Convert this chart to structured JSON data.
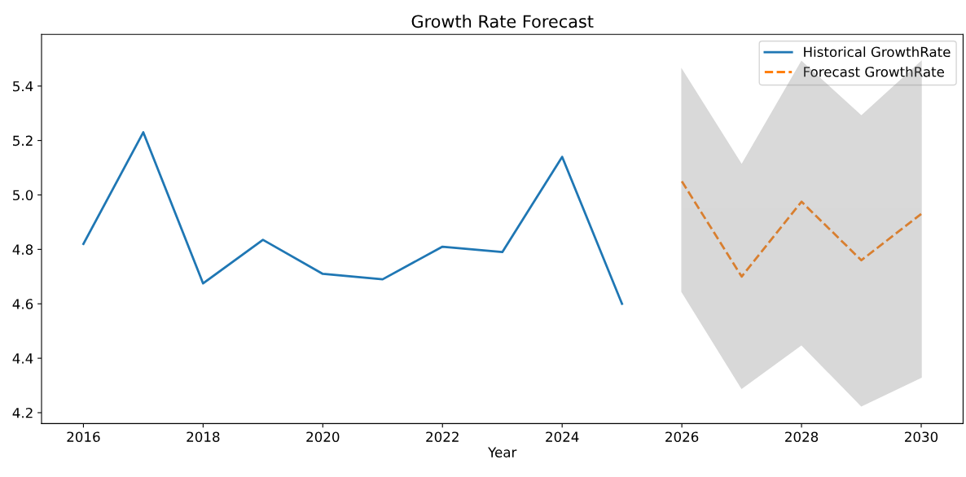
{
  "chart_data": {
    "type": "line",
    "title": "Growth Rate Forecast",
    "xlabel": "Year",
    "xlim": [
      2015.3,
      2030.7
    ],
    "xticks": [
      2016,
      2018,
      2020,
      2022,
      2024,
      2026,
      2028,
      2030
    ],
    "ylim": [
      4.16,
      5.59
    ],
    "yticks": [
      4.2,
      4.4,
      4.6,
      4.8,
      {
        "value": 5,
        "label": "5.0"
      },
      5.2,
      5.4
    ],
    "grid": false,
    "legend": "top right",
    "series": [
      {
        "name": "Historical GrowthRate",
        "color": "#1f77b4",
        "line_style": "solid",
        "x": [
          2016,
          2017,
          2018,
          2019,
          2020,
          2021,
          2022,
          2023,
          2024,
          2025
        ],
        "values": [
          4.82,
          5.23,
          4.675,
          4.835,
          4.71,
          4.69,
          4.81,
          4.79,
          5.14,
          4.6
        ]
      },
      {
        "name": "Forecast GrowthRate",
        "color": "#ff7f0e",
        "line_style": "dashed",
        "x": [
          2026,
          2027,
          2028,
          2029,
          2030
        ],
        "values": [
          5.05,
          4.7,
          4.975,
          4.76,
          4.93
        ],
        "lower": [
          4.645,
          4.29,
          4.45,
          4.225,
          4.33
        ],
        "upper": [
          5.46,
          5.11,
          5.49,
          5.29,
          5.49
        ]
      }
    ]
  }
}
